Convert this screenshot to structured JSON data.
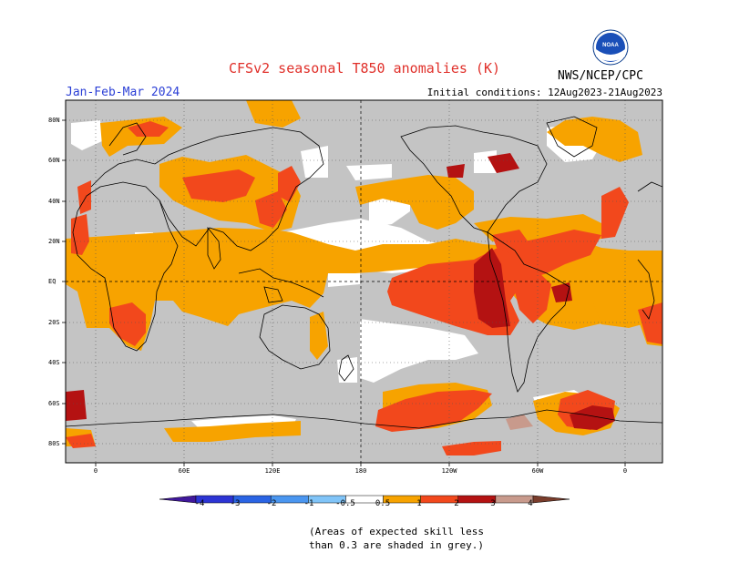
{
  "header": {
    "title": "CFSv2 seasonal T850 anomalies (K)",
    "agency": "NWS/NCEP/CPC",
    "period": "Jan-Feb-Mar 2024",
    "initial_conditions": "Initial conditions: 12Aug2023-21Aug2023",
    "logo_text": "NOAA"
  },
  "map": {
    "lat_labels": [
      "80N",
      "60N",
      "40N",
      "20N",
      "EQ",
      "20S",
      "40S",
      "60S",
      "80S"
    ],
    "lon_labels": [
      "0",
      "60E",
      "120E",
      "180",
      "120W",
      "60W",
      "0"
    ],
    "colors": {
      "grey_low_skill": "#c4c4c4",
      "near_zero": "#ffffff",
      "pos_0_5_1": "#f7a300",
      "pos_1_2": "#f2481c",
      "pos_2_3": "#b41212",
      "pos_3_4": "#c89a8c",
      "pos_gt4": "#7a3d2c",
      "coast": "#000000"
    }
  },
  "colorbar": {
    "labels": [
      "-4",
      "-3",
      "-2",
      "-1",
      "-0.5",
      "0.5",
      "1",
      "2",
      "3",
      "4"
    ],
    "colors": [
      "#40189c",
      "#2c34d4",
      "#2a64e4",
      "#4a96f0",
      "#80c4f8",
      "#ffffff",
      "#f7a300",
      "#f2481c",
      "#b41212",
      "#c89a8c",
      "#7a3d2c"
    ]
  },
  "footnote": {
    "line1": "(Areas of expected skill less",
    "line2": "than 0.3 are shaded in grey.)"
  }
}
